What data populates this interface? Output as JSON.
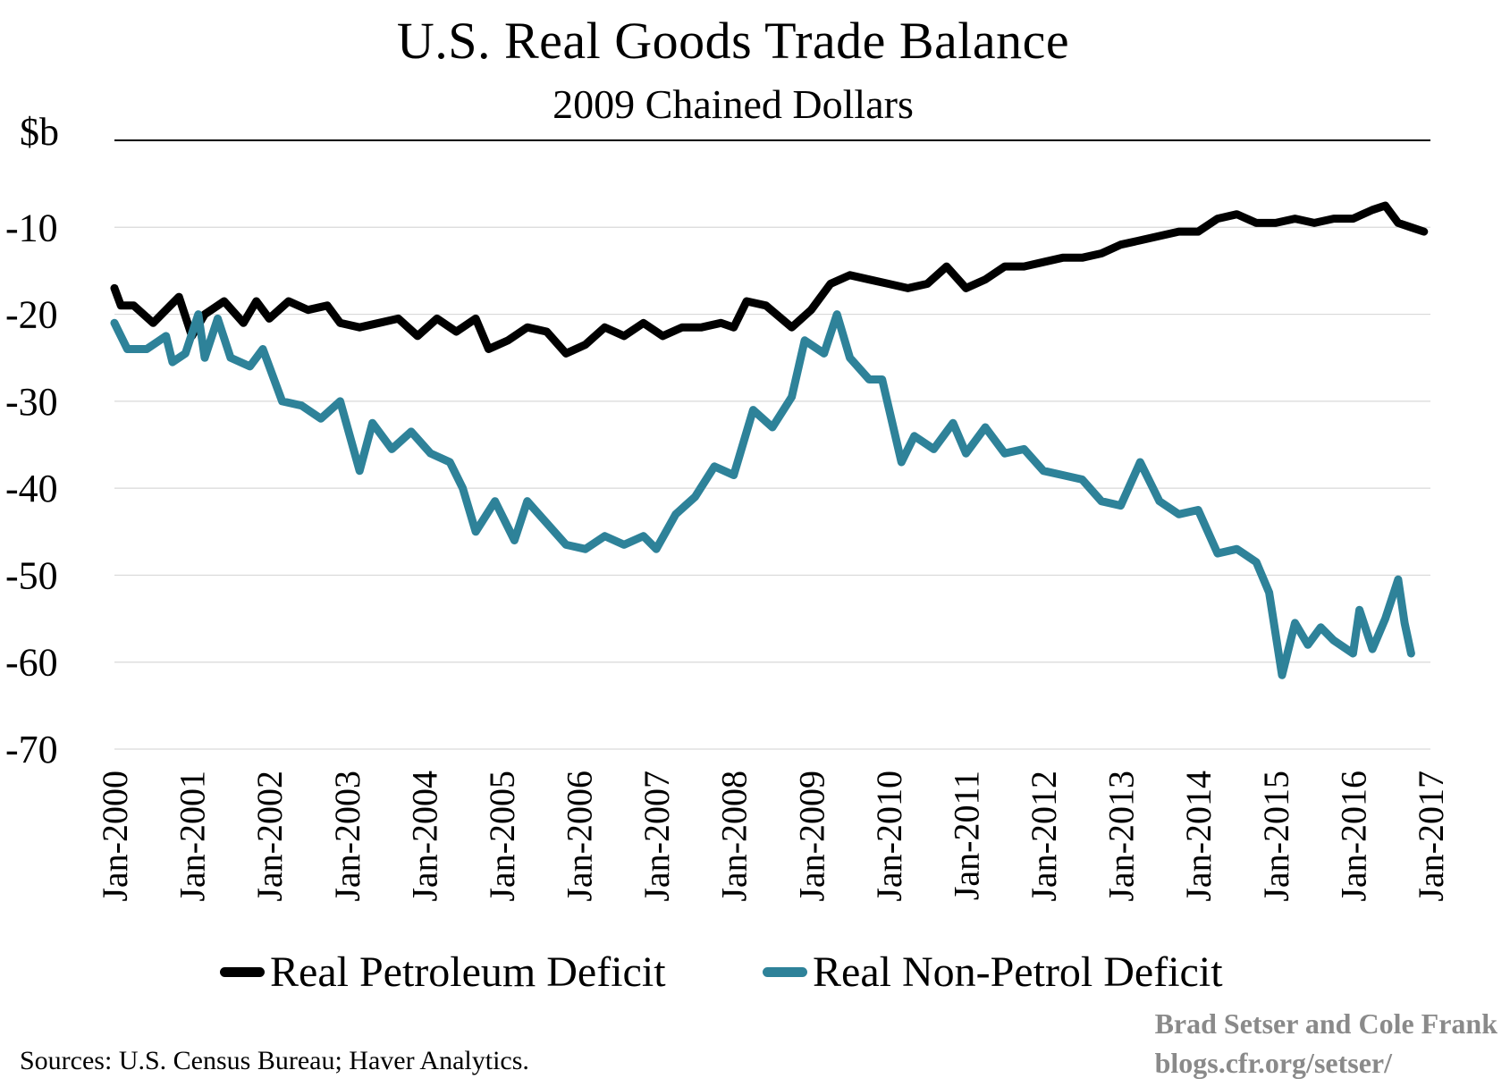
{
  "header": {
    "title": "U.S. Real Goods Trade Balance",
    "subtitle": "2009 Chained Dollars",
    "unit": "$b"
  },
  "footer": {
    "source": "Sources: U.S. Census Bureau; Haver Analytics.",
    "credit_line1": "Brad Setser and Cole Frank",
    "credit_line2": "blogs.cfr.org/setser/"
  },
  "colors": {
    "petroleum": "#000000",
    "non_petrol": "#2e8299",
    "grid": "#d9d9d9",
    "axis": "#000000",
    "credit": "#8a8a8a"
  },
  "chart_data": {
    "type": "line",
    "title": "U.S. Real Goods Trade Balance",
    "subtitle": "2009 Chained Dollars",
    "ylabel": "$b",
    "xlabel": "",
    "ylim": [
      -70,
      0
    ],
    "yticks": [
      -10,
      -20,
      -30,
      -40,
      -50,
      -60,
      -70
    ],
    "xlim": [
      "Jan-2000",
      "Jan-2017"
    ],
    "xticks": [
      "Jan-2000",
      "Jan-2001",
      "Jan-2002",
      "Jan-2003",
      "Jan-2004",
      "Jan-2005",
      "Jan-2006",
      "Jan-2007",
      "Jan-2008",
      "Jan-2009",
      "Jan-2010",
      "Jan-2011",
      "Jan-2012",
      "Jan-2013",
      "Jan-2014",
      "Jan-2015",
      "Jan-2016",
      "Jan-2017"
    ],
    "grid": true,
    "legend_position": "bottom",
    "frequency": "monthly",
    "start": "Jan-2000",
    "series": [
      {
        "name": "Real Petroleum Deficit",
        "color": "#000000",
        "anchors": [
          [
            "Jan-2000",
            -17.0
          ],
          [
            "Feb-2000",
            -19.0
          ],
          [
            "Apr-2000",
            -19.0
          ],
          [
            "Jul-2000",
            -21.0
          ],
          [
            "Sep-2000",
            -19.5
          ],
          [
            "Nov-2000",
            -18.0
          ],
          [
            "Jan-2001",
            -22.5
          ],
          [
            "Mar-2001",
            -20.0
          ],
          [
            "Jun-2001",
            -18.5
          ],
          [
            "Sep-2001",
            -21.0
          ],
          [
            "Nov-2001",
            -18.5
          ],
          [
            "Jan-2002",
            -20.5
          ],
          [
            "Apr-2002",
            -18.5
          ],
          [
            "Jul-2002",
            -19.5
          ],
          [
            "Oct-2002",
            -19.0
          ],
          [
            "Dec-2002",
            -21.0
          ],
          [
            "Mar-2003",
            -21.5
          ],
          [
            "Jun-2003",
            -21.0
          ],
          [
            "Sep-2003",
            -20.5
          ],
          [
            "Dec-2003",
            -22.5
          ],
          [
            "Mar-2004",
            -20.5
          ],
          [
            "Jun-2004",
            -22.0
          ],
          [
            "Sep-2004",
            -20.5
          ],
          [
            "Nov-2004",
            -24.0
          ],
          [
            "Feb-2005",
            -23.0
          ],
          [
            "May-2005",
            -21.5
          ],
          [
            "Aug-2005",
            -22.0
          ],
          [
            "Nov-2005",
            -24.5
          ],
          [
            "Feb-2006",
            -23.5
          ],
          [
            "May-2006",
            -21.5
          ],
          [
            "Aug-2006",
            -22.5
          ],
          [
            "Nov-2006",
            -21.0
          ],
          [
            "Feb-2007",
            -22.5
          ],
          [
            "May-2007",
            -21.5
          ],
          [
            "Aug-2007",
            -21.5
          ],
          [
            "Nov-2007",
            -21.0
          ],
          [
            "Jan-2008",
            -21.5
          ],
          [
            "Mar-2008",
            -18.5
          ],
          [
            "Jun-2008",
            -19.0
          ],
          [
            "Oct-2008",
            -21.5
          ],
          [
            "Jan-2009",
            -19.5
          ],
          [
            "Apr-2009",
            -16.5
          ],
          [
            "Jul-2009",
            -15.5
          ],
          [
            "Oct-2009",
            -16.0
          ],
          [
            "Jan-2010",
            -16.5
          ],
          [
            "Apr-2010",
            -17.0
          ],
          [
            "Jul-2010",
            -16.5
          ],
          [
            "Oct-2010",
            -14.5
          ],
          [
            "Jan-2011",
            -17.0
          ],
          [
            "Apr-2011",
            -16.0
          ],
          [
            "Jul-2011",
            -14.5
          ],
          [
            "Oct-2011",
            -14.5
          ],
          [
            "Jan-2012",
            -14.0
          ],
          [
            "Apr-2012",
            -13.5
          ],
          [
            "Jul-2012",
            -13.5
          ],
          [
            "Oct-2012",
            -13.0
          ],
          [
            "Jan-2013",
            -12.0
          ],
          [
            "Apr-2013",
            -11.5
          ],
          [
            "Jul-2013",
            -11.0
          ],
          [
            "Oct-2013",
            -10.5
          ],
          [
            "Jan-2014",
            -10.5
          ],
          [
            "Apr-2014",
            -9.0
          ],
          [
            "Jul-2014",
            -8.5
          ],
          [
            "Oct-2014",
            -9.5
          ],
          [
            "Jan-2015",
            -9.5
          ],
          [
            "Apr-2015",
            -9.0
          ],
          [
            "Jul-2015",
            -9.5
          ],
          [
            "Oct-2015",
            -9.0
          ],
          [
            "Jan-2016",
            -9.0
          ],
          [
            "Apr-2016",
            -8.0
          ],
          [
            "Jun-2016",
            -7.5
          ],
          [
            "Aug-2016",
            -9.5
          ],
          [
            "Oct-2016",
            -10.0
          ],
          [
            "Dec-2016",
            -10.5
          ]
        ]
      },
      {
        "name": "Real Non-Petrol Deficit",
        "color": "#2e8299",
        "anchors": [
          [
            "Jan-2000",
            -21.0
          ],
          [
            "Mar-2000",
            -24.0
          ],
          [
            "Jun-2000",
            -24.0
          ],
          [
            "Sep-2000",
            -22.5
          ],
          [
            "Oct-2000",
            -25.5
          ],
          [
            "Dec-2000",
            -24.5
          ],
          [
            "Feb-2001",
            -20.0
          ],
          [
            "Mar-2001",
            -25.0
          ],
          [
            "May-2001",
            -20.5
          ],
          [
            "Jul-2001",
            -25.0
          ],
          [
            "Oct-2001",
            -26.0
          ],
          [
            "Dec-2001",
            -24.0
          ],
          [
            "Mar-2002",
            -30.0
          ],
          [
            "Jun-2002",
            -30.5
          ],
          [
            "Sep-2002",
            -32.0
          ],
          [
            "Dec-2002",
            -30.0
          ],
          [
            "Mar-2003",
            -38.0
          ],
          [
            "May-2003",
            -32.5
          ],
          [
            "Aug-2003",
            -35.5
          ],
          [
            "Nov-2003",
            -33.5
          ],
          [
            "Feb-2004",
            -36.0
          ],
          [
            "May-2004",
            -37.0
          ],
          [
            "Jul-2004",
            -40.0
          ],
          [
            "Sep-2004",
            -45.0
          ],
          [
            "Dec-2004",
            -41.5
          ],
          [
            "Mar-2005",
            -46.0
          ],
          [
            "May-2005",
            -41.5
          ],
          [
            "Aug-2005",
            -44.0
          ],
          [
            "Nov-2005",
            -46.5
          ],
          [
            "Feb-2006",
            -47.0
          ],
          [
            "May-2006",
            -45.5
          ],
          [
            "Aug-2006",
            -46.5
          ],
          [
            "Nov-2006",
            -45.5
          ],
          [
            "Jan-2007",
            -47.0
          ],
          [
            "Apr-2007",
            -43.0
          ],
          [
            "Jul-2007",
            -41.0
          ],
          [
            "Oct-2007",
            -37.5
          ],
          [
            "Jan-2008",
            -38.5
          ],
          [
            "Apr-2008",
            -31.0
          ],
          [
            "Jul-2008",
            -33.0
          ],
          [
            "Oct-2008",
            -29.5
          ],
          [
            "Dec-2008",
            -23.0
          ],
          [
            "Mar-2009",
            -24.5
          ],
          [
            "May-2009",
            -20.0
          ],
          [
            "Jul-2009",
            -25.0
          ],
          [
            "Oct-2009",
            -27.5
          ],
          [
            "Dec-2009",
            -27.5
          ],
          [
            "Mar-2010",
            -37.0
          ],
          [
            "May-2010",
            -34.0
          ],
          [
            "Aug-2010",
            -35.5
          ],
          [
            "Nov-2010",
            -32.5
          ],
          [
            "Jan-2011",
            -36.0
          ],
          [
            "Apr-2011",
            -33.0
          ],
          [
            "Jul-2011",
            -36.0
          ],
          [
            "Oct-2011",
            -35.5
          ],
          [
            "Jan-2012",
            -38.0
          ],
          [
            "Apr-2012",
            -38.5
          ],
          [
            "Jul-2012",
            -39.0
          ],
          [
            "Oct-2012",
            -41.5
          ],
          [
            "Jan-2013",
            -42.0
          ],
          [
            "Apr-2013",
            -37.0
          ],
          [
            "Jul-2013",
            -41.5
          ],
          [
            "Oct-2013",
            -43.0
          ],
          [
            "Jan-2014",
            -42.5
          ],
          [
            "Apr-2014",
            -47.5
          ],
          [
            "Jul-2014",
            -47.0
          ],
          [
            "Oct-2014",
            -48.5
          ],
          [
            "Dec-2014",
            -52.0
          ],
          [
            "Feb-2015",
            -61.5
          ],
          [
            "Apr-2015",
            -55.5
          ],
          [
            "Jun-2015",
            -58.0
          ],
          [
            "Aug-2015",
            -56.0
          ],
          [
            "Oct-2015",
            -57.5
          ],
          [
            "Jan-2016",
            -59.0
          ],
          [
            "Feb-2016",
            -54.0
          ],
          [
            "Apr-2016",
            -58.5
          ],
          [
            "Jun-2016",
            -55.0
          ],
          [
            "Aug-2016",
            -50.5
          ],
          [
            "Sep-2016",
            -55.5
          ],
          [
            "Oct-2016",
            -59.0
          ]
        ]
      }
    ]
  }
}
